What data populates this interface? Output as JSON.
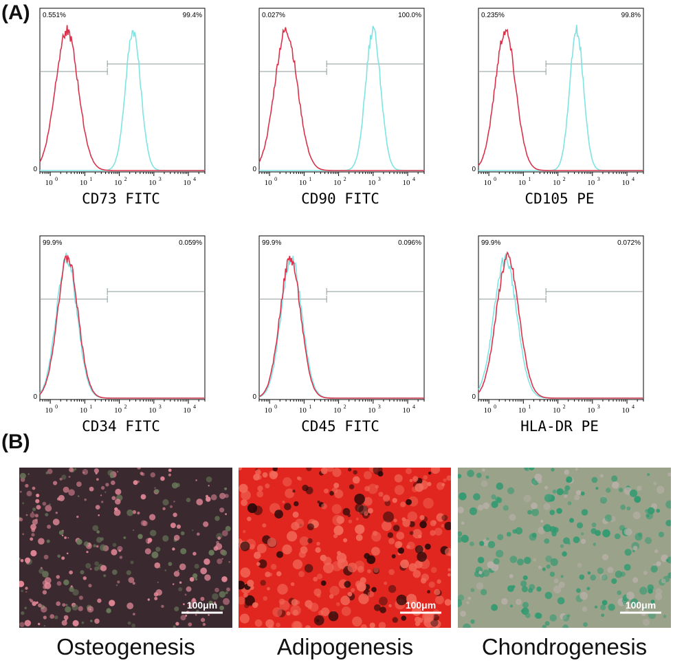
{
  "panel_a_label": "(A)",
  "panel_b_label": "(B)",
  "colors": {
    "isotype": "#d9314a",
    "marker": "#7de3e3",
    "gate": "#8a9a9a"
  },
  "chart_data": [
    {
      "type": "histogram",
      "xlabel": "CD73 FITC",
      "xscale": "log",
      "xlim": [
        0.5,
        30000
      ],
      "x_ticks": [
        "10",
        "10",
        "10",
        "10",
        "10"
      ],
      "x_tick_exponents": [
        "0",
        "1",
        "2",
        "3",
        "4"
      ],
      "y_tick": "0",
      "gate_left_label": "0.551%",
      "gate_right_label": "99.4%",
      "series": [
        {
          "role": "isotype",
          "peak_x": 3,
          "width": 0.33
        },
        {
          "role": "marker",
          "peak_x": 250,
          "width": 0.22
        }
      ]
    },
    {
      "type": "histogram",
      "xlabel": "CD90 FITC",
      "xscale": "log",
      "xlim": [
        0.5,
        30000
      ],
      "x_ticks": [
        "10",
        "10",
        "10",
        "10",
        "10"
      ],
      "x_tick_exponents": [
        "0",
        "1",
        "2",
        "3",
        "4"
      ],
      "y_tick": "0",
      "gate_left_label": "0.027%",
      "gate_right_label": "100.0%",
      "series": [
        {
          "role": "isotype",
          "peak_x": 3,
          "width": 0.33
        },
        {
          "role": "marker",
          "peak_x": 1000,
          "width": 0.22
        }
      ]
    },
    {
      "type": "histogram",
      "xlabel": "CD105 PE",
      "xscale": "log",
      "xlim": [
        0.5,
        30000
      ],
      "x_ticks": [
        "10",
        "10",
        "10",
        "10",
        "10"
      ],
      "x_tick_exponents": [
        "0",
        "1",
        "2",
        "3",
        "4"
      ],
      "y_tick": "0",
      "gate_left_label": "0.235%",
      "gate_right_label": "99.8%",
      "series": [
        {
          "role": "isotype",
          "peak_x": 3,
          "width": 0.3
        },
        {
          "role": "marker",
          "peak_x": 350,
          "width": 0.2
        }
      ]
    },
    {
      "type": "histogram",
      "xlabel": "CD34 FITC",
      "xscale": "log",
      "xlim": [
        0.5,
        30000
      ],
      "x_ticks": [
        "10",
        "10",
        "10",
        "10",
        "10"
      ],
      "x_tick_exponents": [
        "0",
        "1",
        "2",
        "3",
        "4"
      ],
      "y_tick": "0",
      "gate_left_label": "99.9%",
      "gate_right_label": "0.059%",
      "series": [
        {
          "role": "isotype",
          "peak_x": 3.2,
          "width": 0.3
        },
        {
          "role": "marker",
          "peak_x": 3.0,
          "width": 0.3
        }
      ]
    },
    {
      "type": "histogram",
      "xlabel": "CD45 FITC",
      "xscale": "log",
      "xlim": [
        0.5,
        30000
      ],
      "x_ticks": [
        "10",
        "10",
        "10",
        "10",
        "10"
      ],
      "x_tick_exponents": [
        "0",
        "1",
        "2",
        "3",
        "4"
      ],
      "y_tick": "0",
      "gate_left_label": "99.9%",
      "gate_right_label": "0.096%",
      "series": [
        {
          "role": "isotype",
          "peak_x": 4,
          "width": 0.3
        },
        {
          "role": "marker",
          "peak_x": 4.3,
          "width": 0.3
        }
      ]
    },
    {
      "type": "histogram",
      "xlabel": "HLA-DR PE",
      "xscale": "log",
      "xlim": [
        0.5,
        30000
      ],
      "x_ticks": [
        "10",
        "10",
        "10",
        "10",
        "10"
      ],
      "x_tick_exponents": [
        "0",
        "1",
        "2",
        "3",
        "4"
      ],
      "y_tick": "0",
      "gate_left_label": "99.9%",
      "gate_right_label": "0.072%",
      "series": [
        {
          "role": "isotype",
          "peak_x": 3.5,
          "width": 0.33
        },
        {
          "role": "marker",
          "peak_x": 3.0,
          "width": 0.33
        }
      ]
    }
  ],
  "micrographs": [
    {
      "caption": "Osteogenesis",
      "scale_bar": "100μm",
      "background": "#3a2a30",
      "spot_color": "#e88a9a",
      "spot_color2": "#6a7a5a"
    },
    {
      "caption": "Adipogenesis",
      "scale_bar": "100μm",
      "background": "#e0261e",
      "spot_color": "#f26a5a",
      "spot_color2": "#2a0a0a"
    },
    {
      "caption": "Chondrogenesis",
      "scale_bar": "100μm",
      "background": "#9aa28a",
      "spot_color": "#2e9a70",
      "spot_color2": "#b8b0a8"
    }
  ]
}
